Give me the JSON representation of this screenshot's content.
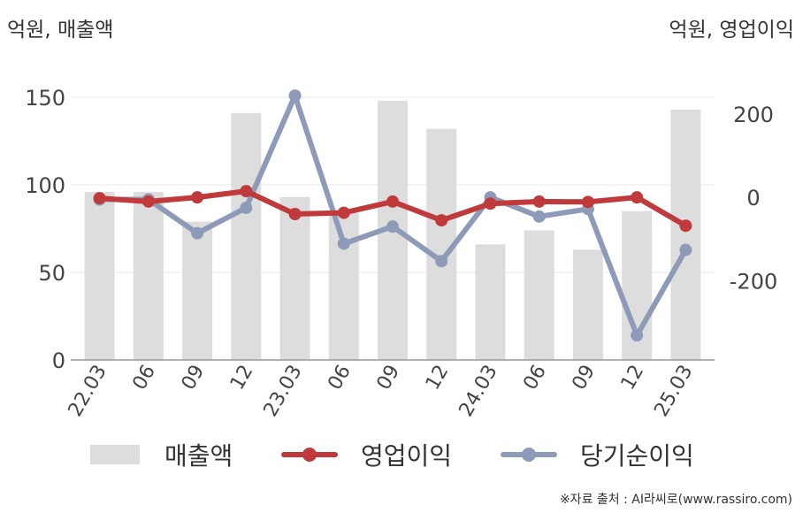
{
  "unit_left": "억원, 매출액",
  "unit_right": "억원, 영업이익",
  "source": "※자료 출처 : AI라씨로(www.rassiro.com)",
  "colors": {
    "bar": "#dddddd",
    "operating": "#c0393b",
    "net": "#8e9bb8",
    "grid": "#e8e8e8",
    "axis": "#999999"
  },
  "legend": [
    {
      "label": "매출액",
      "marker": "bar"
    },
    {
      "label": "영업이익",
      "marker": "line"
    },
    {
      "label": "당기순이익",
      "marker": "line"
    }
  ],
  "chart_data": {
    "type": "bar",
    "categories": [
      "22.03",
      "06",
      "09",
      "12",
      "23.03",
      "06",
      "09",
      "12",
      "24.03",
      "06",
      "09",
      "12",
      "25.03"
    ],
    "series": [
      {
        "name": "매출액",
        "type": "bar",
        "axis": "left",
        "values": [
          96,
          96,
          79,
          141,
          93,
          84,
          148,
          132,
          66,
          74,
          63,
          85,
          143
        ]
      },
      {
        "name": "영업이익",
        "type": "line",
        "axis": "right",
        "values": [
          -2,
          -10,
          0,
          15,
          -40,
          -37,
          -10,
          -55,
          -15,
          -10,
          -11,
          0,
          -68
        ]
      },
      {
        "name": "당기순이익",
        "type": "line",
        "axis": "right",
        "values": [
          -5,
          -5,
          -86,
          -25,
          244,
          -111,
          -70,
          -153,
          0,
          -46,
          -28,
          -331,
          -126
        ]
      }
    ],
    "y_left": {
      "lim": [
        0,
        150
      ],
      "ticks": [
        0,
        50,
        100,
        150
      ]
    },
    "y_right": {
      "lim": [
        -390,
        240
      ],
      "ticks": [
        -200,
        0,
        200
      ],
      "tick_labels": [
        "-200",
        "0",
        "200"
      ]
    },
    "grid": true,
    "legend_position": "bottom"
  }
}
